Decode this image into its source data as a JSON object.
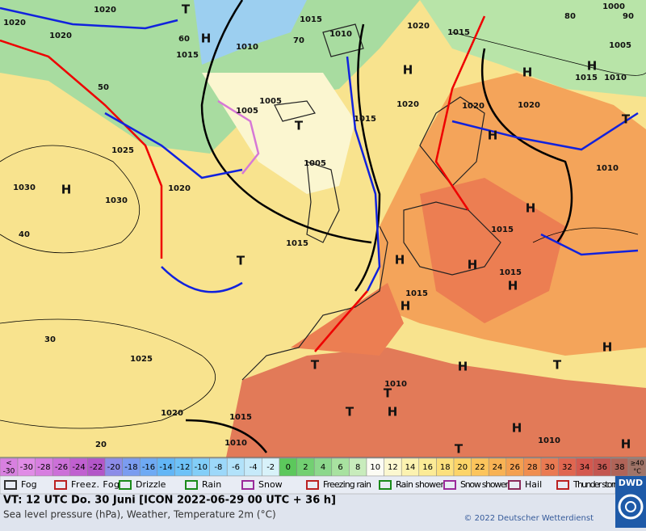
{
  "map": {
    "labels": [
      "1020",
      "1020",
      "1020",
      "T",
      "1015",
      "H",
      "1015",
      "1010",
      "1010",
      "1005",
      "1005",
      "T",
      "1005",
      "H",
      "1020",
      "1015",
      "1020",
      "1020",
      "1020",
      "1015",
      "1010",
      "1005",
      "1000",
      "H",
      "T",
      "H",
      "1015",
      "1025",
      "1020",
      "1030",
      "H",
      "1030",
      "1015",
      "H",
      "1015",
      "1010",
      "H",
      "1015",
      "H",
      "1015",
      "H",
      "T",
      "1025",
      "H",
      "H",
      "T",
      "1010",
      "T",
      "H",
      "T",
      "1015",
      "1020",
      "1010",
      "1010",
      "H",
      "H",
      "T",
      "T",
      "H",
      "H",
      "30",
      "20",
      "40",
      "50",
      "60",
      "70",
      "80",
      "90"
    ]
  },
  "scale": {
    "low_symbol": "<",
    "low_value": -30,
    "low_color": "#d880e0",
    "cells": [
      {
        "v": -30,
        "c": "#e08ce6"
      },
      {
        "v": -28,
        "c": "#d77ee0"
      },
      {
        "v": -26,
        "c": "#cc70d8"
      },
      {
        "v": -24,
        "c": "#c060d0"
      },
      {
        "v": -22,
        "c": "#b356c8"
      },
      {
        "v": -20,
        "c": "#8c8ce8"
      },
      {
        "v": -18,
        "c": "#7b9cf0"
      },
      {
        "v": -16,
        "c": "#6eaaf4"
      },
      {
        "v": -14,
        "c": "#62b6f6"
      },
      {
        "v": -12,
        "c": "#6ec2f8"
      },
      {
        "v": -10,
        "c": "#82cef8"
      },
      {
        "v": -8,
        "c": "#9cd8fa"
      },
      {
        "v": -6,
        "c": "#b2e2fa"
      },
      {
        "v": -4,
        "c": "#c6eafa"
      },
      {
        "v": -2,
        "c": "#d8f2fa"
      },
      {
        "v": 0,
        "c": "#5cc85c"
      },
      {
        "v": 2,
        "c": "#72d072"
      },
      {
        "v": 4,
        "c": "#8cd88c"
      },
      {
        "v": 6,
        "c": "#a8e2a0"
      },
      {
        "v": 8,
        "c": "#c8ecbc"
      },
      {
        "v": 10,
        "c": "#fcfcf4"
      },
      {
        "v": 12,
        "c": "#fcf8d0"
      },
      {
        "v": 14,
        "c": "#fcf2b0"
      },
      {
        "v": 16,
        "c": "#fceb96"
      },
      {
        "v": 18,
        "c": "#fce07c"
      },
      {
        "v": 20,
        "c": "#fcd468"
      },
      {
        "v": 22,
        "c": "#fcc45c"
      },
      {
        "v": 24,
        "c": "#f8b254"
      },
      {
        "v": 26,
        "c": "#f4a050"
      },
      {
        "v": 28,
        "c": "#f08e50"
      },
      {
        "v": 30,
        "c": "#ea7a52"
      },
      {
        "v": 32,
        "c": "#e06650"
      },
      {
        "v": 34,
        "c": "#d4584e"
      },
      {
        "v": 36,
        "c": "#c45650"
      },
      {
        "v": 38,
        "c": "#b06458"
      }
    ],
    "high_top": "≥40",
    "high_bottom": "°C",
    "high_color": "#a07468"
  },
  "legend": [
    "Fog",
    "Freez. Fog",
    "Drizzle",
    "Rain",
    "Snow",
    "Freezing rain",
    "Rain shower",
    "Snow shower",
    "Hail",
    "Thunder storm"
  ],
  "logo": "DWD",
  "footer": {
    "valid_time": "VT: 12 UTC Do.  30 Juni [ICON 2022-06-29  00 UTC + 36 h]",
    "description": "Sea level pressure (hPa), Weather, Temperature 2m (°C)",
    "copyright": "© 2022 Deutscher Wetterdienst"
  }
}
